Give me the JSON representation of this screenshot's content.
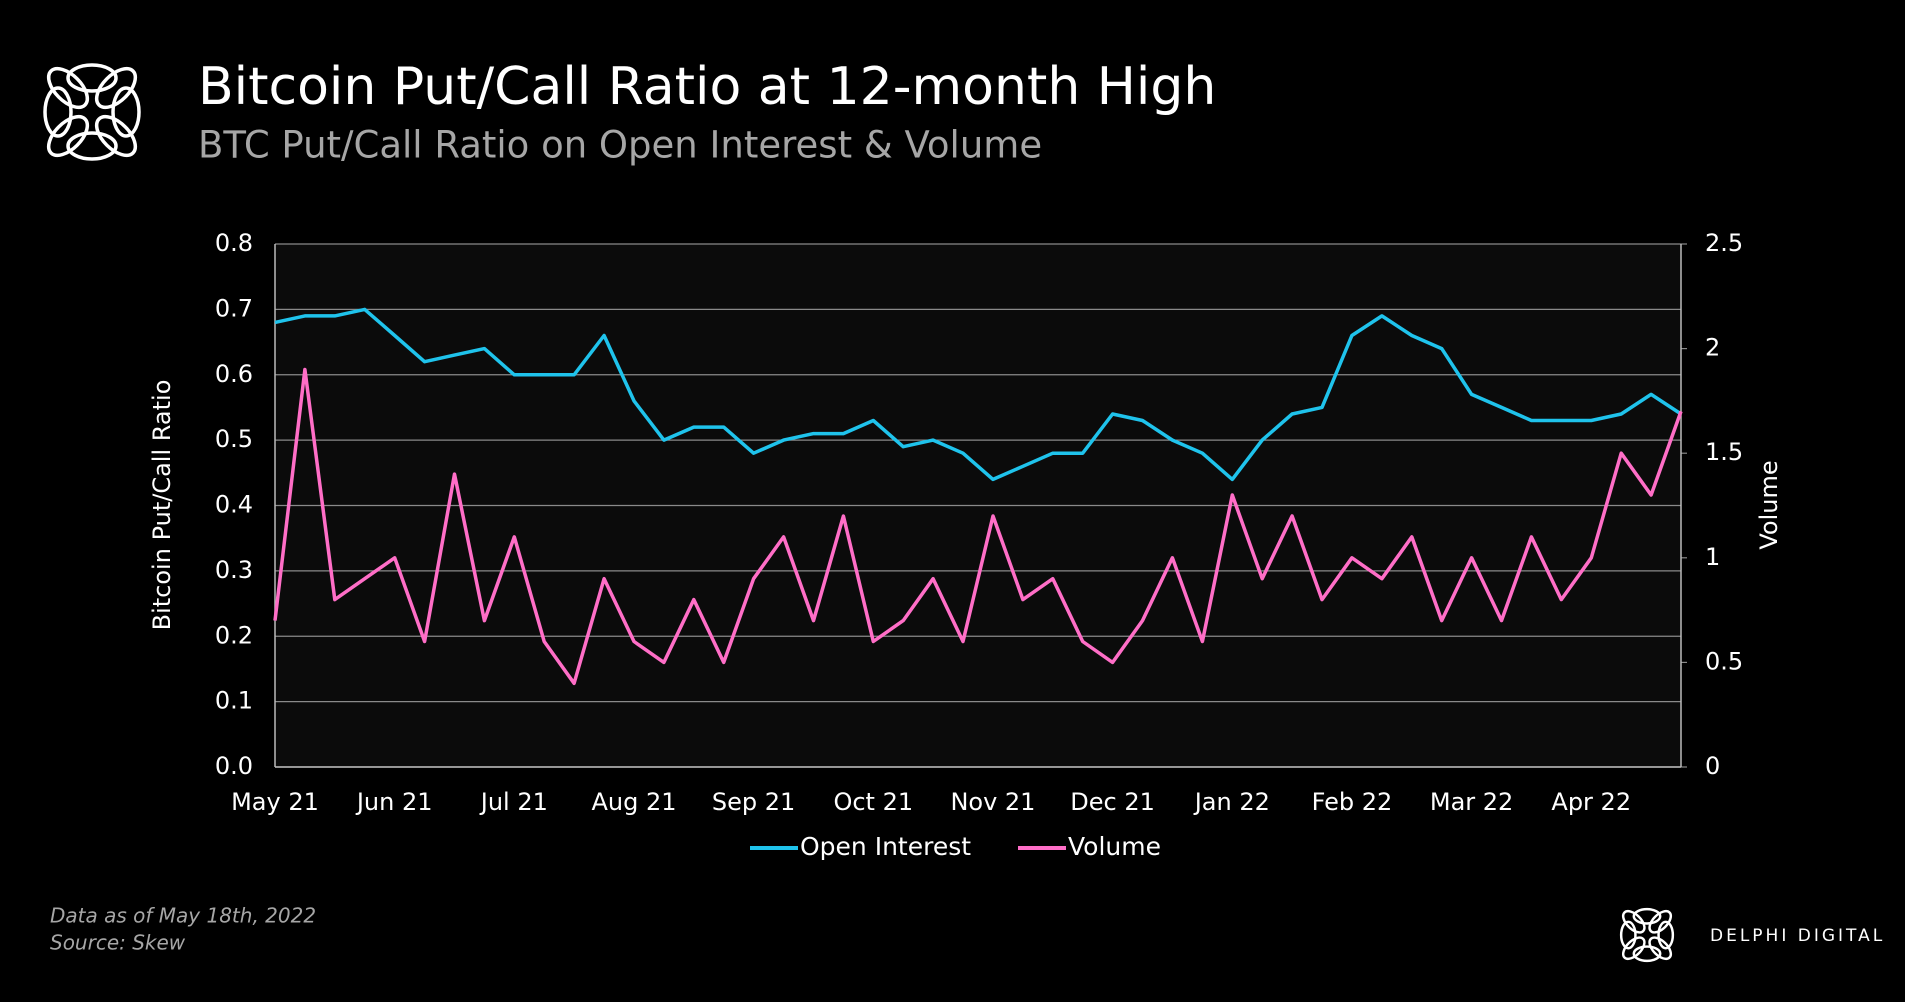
{
  "chart_data": {
    "type": "line",
    "title": "Bitcoin Put/Call Ratio at 12-month High",
    "subtitle": "BTC Put/Call Ratio on Open Interest & Volume",
    "y_label": "Bitcoin Put/Call Ratio",
    "y2_label": "Volume",
    "categories": [
      "May 21",
      null,
      null,
      null,
      "Jun 21",
      null,
      null,
      null,
      "Jul 21",
      null,
      null,
      null,
      "Aug 21",
      null,
      null,
      null,
      "Sep 21",
      null,
      null,
      null,
      "Oct 21",
      null,
      null,
      null,
      "Nov 21",
      null,
      null,
      null,
      "Dec 21",
      null,
      null,
      null,
      "Jan 22",
      null,
      null,
      null,
      "Feb 22",
      null,
      null,
      null,
      "Mar 22",
      null,
      null,
      null,
      "Apr 22",
      null,
      null,
      null
    ],
    "series": [
      {
        "name": "Open Interest",
        "color": "#1fc3ec",
        "axis": "y",
        "values": [
          0.68,
          0.69,
          0.69,
          0.7,
          0.66,
          0.62,
          0.63,
          0.64,
          0.6,
          0.6,
          0.6,
          0.66,
          0.56,
          0.5,
          0.52,
          0.52,
          0.48,
          0.5,
          0.51,
          0.51,
          0.53,
          0.49,
          0.5,
          0.48,
          0.44,
          0.46,
          0.48,
          0.48,
          0.54,
          0.53,
          0.5,
          0.48,
          0.44,
          0.5,
          0.54,
          0.55,
          0.66,
          0.69,
          0.66,
          0.64,
          0.57,
          0.55,
          0.53,
          0.53,
          0.53,
          0.54,
          0.57,
          0.54
        ]
      },
      {
        "name": "Volume",
        "color": "#ff6ec7",
        "axis": "y2",
        "values": [
          0.7,
          1.9,
          0.8,
          0.9,
          1.0,
          0.6,
          1.4,
          0.7,
          1.1,
          0.6,
          0.4,
          0.9,
          0.6,
          0.5,
          0.8,
          0.5,
          0.9,
          1.1,
          0.7,
          1.2,
          0.6,
          0.7,
          0.9,
          0.6,
          1.2,
          0.8,
          0.9,
          0.6,
          0.5,
          0.7,
          1.0,
          0.6,
          1.3,
          0.9,
          1.2,
          0.8,
          1.0,
          0.9,
          1.1,
          0.7,
          1.0,
          0.7,
          1.1,
          0.8,
          1.0,
          1.5,
          1.3,
          1.7
        ]
      }
    ],
    "ylim": [
      0,
      0.8
    ],
    "yticks": [
      {
        "value": 0,
        "label": "0.0"
      },
      0.1,
      0.2,
      0.3,
      0.4,
      0.5,
      0.6,
      0.7,
      0.8
    ],
    "y2lim": [
      0,
      2.5
    ],
    "y2ticks": [
      0,
      0.5,
      1,
      1.5,
      2,
      2.5
    ],
    "grid": true,
    "legend": "bottom",
    "footnote": "Data as of May 18th, 2022",
    "source": "Source: Skew",
    "brand": "DELPHI DIGITAL"
  }
}
